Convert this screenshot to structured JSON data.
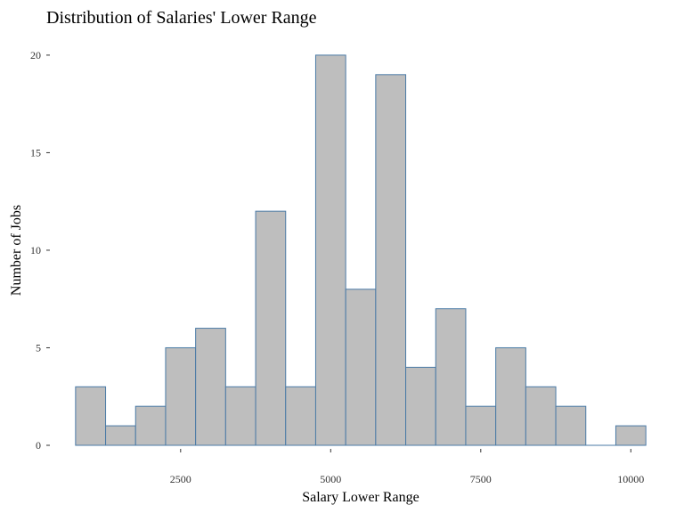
{
  "chart_data": {
    "type": "bar",
    "title": "Distribution of Salaries' Lower Range",
    "xlabel": "Salary Lower Range",
    "ylabel": "Number of Jobs",
    "bin_width": 500,
    "bins": [
      {
        "start": 750,
        "end": 1250,
        "count": 3
      },
      {
        "start": 1250,
        "end": 1750,
        "count": 1
      },
      {
        "start": 1750,
        "end": 2250,
        "count": 2
      },
      {
        "start": 2250,
        "end": 2750,
        "count": 5
      },
      {
        "start": 2750,
        "end": 3250,
        "count": 6
      },
      {
        "start": 3250,
        "end": 3750,
        "count": 3
      },
      {
        "start": 3750,
        "end": 4250,
        "count": 12
      },
      {
        "start": 4250,
        "end": 4750,
        "count": 3
      },
      {
        "start": 4750,
        "end": 5250,
        "count": 20
      },
      {
        "start": 5250,
        "end": 5750,
        "count": 8
      },
      {
        "start": 5750,
        "end": 6250,
        "count": 19
      },
      {
        "start": 6250,
        "end": 6750,
        "count": 4
      },
      {
        "start": 6750,
        "end": 7250,
        "count": 7
      },
      {
        "start": 7250,
        "end": 7750,
        "count": 2
      },
      {
        "start": 7750,
        "end": 8250,
        "count": 5
      },
      {
        "start": 8250,
        "end": 8750,
        "count": 3
      },
      {
        "start": 8750,
        "end": 9250,
        "count": 2
      },
      {
        "start": 9250,
        "end": 9750,
        "count": 0
      },
      {
        "start": 9750,
        "end": 10250,
        "count": 1
      }
    ],
    "xlim": [
      500,
      10500
    ],
    "ylim": [
      0,
      21
    ],
    "xticks": [
      2500,
      5000,
      7500,
      10000
    ],
    "xtick_labels": [
      "2500",
      "5000",
      "7500",
      "10000"
    ],
    "yticks": [
      0,
      5,
      10,
      15,
      20
    ],
    "ytick_labels": [
      "0",
      "5",
      "10",
      "15",
      "20"
    ],
    "grid": false,
    "legend": "none",
    "colors": {
      "fill": "#bebebe",
      "stroke": "#4a7aa6"
    }
  }
}
